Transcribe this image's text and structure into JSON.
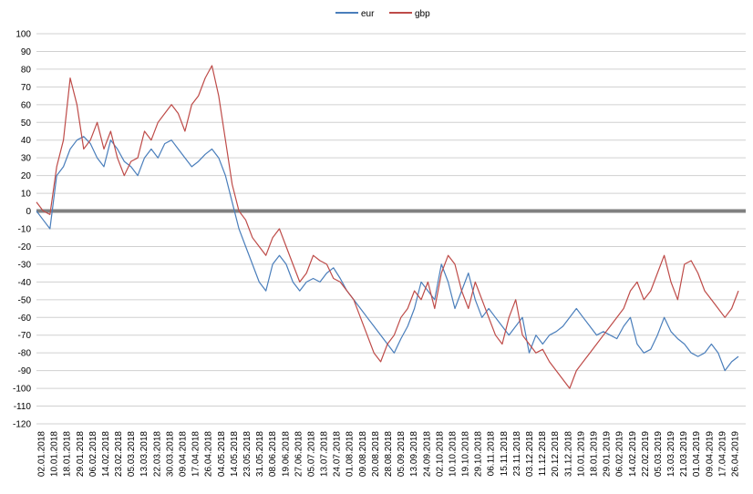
{
  "chart_data": {
    "type": "line",
    "title": "",
    "xlabel": "",
    "ylabel": "",
    "ylim": [
      -120,
      100
    ],
    "y_ticks": [
      100,
      90,
      80,
      70,
      60,
      50,
      40,
      30,
      20,
      10,
      0,
      -10,
      -20,
      -30,
      -40,
      -50,
      -60,
      -70,
      -80,
      -90,
      -100,
      -110,
      -120
    ],
    "grid": "horizontal",
    "zero_line": true,
    "legend_position": "top",
    "x_tick_labels": [
      "02.01.2018",
      "10.01.2018",
      "18.01.2018",
      "29.01.2018",
      "06.02.2018",
      "14.02.2018",
      "23.02.2018",
      "05.03.2018",
      "13.03.2018",
      "22.03.2018",
      "30.03.2018",
      "09.04.2018",
      "17.04.2018",
      "26.04.2018",
      "04.05.2018",
      "14.05.2018",
      "23.05.2018",
      "31.05.2018",
      "08.06.2018",
      "19.06.2018",
      "27.06.2018",
      "05.07.2018",
      "13.07.2018",
      "24.07.2018",
      "01.08.2018",
      "09.08.2018",
      "20.08.2018",
      "28.08.2018",
      "05.09.2018",
      "13.09.2018",
      "24.09.2018",
      "02.10.2018",
      "10.10.2018",
      "19.10.2018",
      "29.10.2018",
      "06.11.2018",
      "15.11.2018",
      "23.11.2018",
      "03.12.2018",
      "11.12.2018",
      "20.12.2018",
      "31.12.2018",
      "10.01.2019",
      "18.01.2019",
      "29.01.2019",
      "06.02.2019",
      "14.02.2019",
      "22.02.2019",
      "05.03.2019",
      "13.03.2019",
      "21.03.2019",
      "01.04.2019",
      "09.04.2019",
      "17.04.2019",
      "26.04.2019"
    ],
    "series": [
      {
        "name": "eur",
        "color": "#4a7ebb",
        "values": [
          0,
          -5,
          -10,
          20,
          25,
          35,
          40,
          42,
          38,
          30,
          25,
          40,
          35,
          28,
          25,
          20,
          30,
          35,
          30,
          38,
          40,
          35,
          30,
          25,
          28,
          32,
          35,
          30,
          20,
          5,
          -10,
          -20,
          -30,
          -40,
          -45,
          -30,
          -25,
          -30,
          -40,
          -45,
          -40,
          -38,
          -40,
          -35,
          -32,
          -38,
          -45,
          -50,
          -55,
          -60,
          -65,
          -70,
          -75,
          -80,
          -72,
          -65,
          -55,
          -40,
          -45,
          -50,
          -30,
          -40,
          -55,
          -45,
          -35,
          -50,
          -60,
          -55,
          -60,
          -65,
          -70,
          -65,
          -60,
          -80,
          -70,
          -75,
          -70,
          -68,
          -65,
          -60,
          -55,
          -60,
          -65,
          -70,
          -68,
          -70,
          -72,
          -65,
          -60,
          -75,
          -80,
          -78,
          -70,
          -60,
          -68,
          -72,
          -75,
          -80,
          -82,
          -80,
          -75,
          -80,
          -90,
          -85,
          -82
        ]
      },
      {
        "name": "gbp",
        "color": "#be4b48",
        "values": [
          5,
          0,
          -2,
          25,
          40,
          75,
          60,
          35,
          40,
          50,
          35,
          45,
          30,
          20,
          28,
          30,
          45,
          40,
          50,
          55,
          60,
          55,
          45,
          60,
          65,
          75,
          82,
          65,
          40,
          15,
          0,
          -5,
          -15,
          -20,
          -25,
          -15,
          -10,
          -20,
          -30,
          -40,
          -35,
          -25,
          -28,
          -30,
          -38,
          -40,
          -45,
          -50,
          -60,
          -70,
          -80,
          -85,
          -75,
          -70,
          -60,
          -55,
          -45,
          -50,
          -40,
          -55,
          -35,
          -25,
          -30,
          -45,
          -55,
          -40,
          -50,
          -60,
          -70,
          -75,
          -60,
          -50,
          -70,
          -75,
          -80,
          -78,
          -85,
          -90,
          -95,
          -100,
          -90,
          -85,
          -80,
          -75,
          -70,
          -65,
          -60,
          -55,
          -45,
          -40,
          -50,
          -45,
          -35,
          -25,
          -40,
          -50,
          -30,
          -28,
          -35,
          -45,
          -50,
          -55,
          -60,
          -55,
          -45
        ]
      }
    ]
  }
}
